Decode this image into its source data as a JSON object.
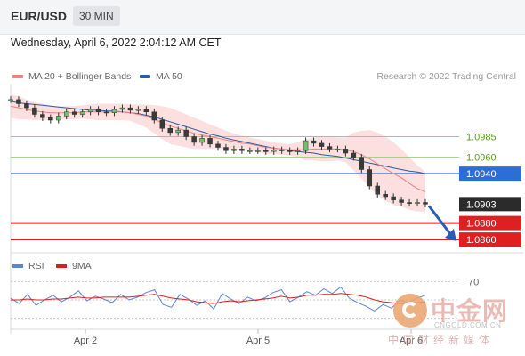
{
  "header": {
    "symbol": "EUR/USD",
    "interval": "30 MIN"
  },
  "timestamp": "Wednesday, April 6, 2022 2:04:12 AM CET",
  "legend": {
    "ma20_label": "MA 20 + Bollinger Bands",
    "ma50_label": "MA 50",
    "credit": "Research © 2022 Trading Central",
    "rsi_label": "RSI",
    "rsi_ma_label": "9MA"
  },
  "colors": {
    "ma20": "#f08080",
    "ma50": "#2d5aa0",
    "band": "#f9c6c6",
    "resistance": "#9acd7c",
    "pivot": "#2b6fd6",
    "support": "#e02020",
    "current": "#2b2b2b",
    "rsi": "#5b86d6",
    "rsi_ma": "#d92020",
    "arrow": "#2b5bb5"
  },
  "chart_data": [
    {
      "type": "line",
      "title": "EUR/USD 30 MIN",
      "ylim": [
        1.0845,
        1.1045
      ],
      "x_ticks": [
        "Apr 2",
        "Apr 5",
        "Apr 6"
      ],
      "levels": [
        {
          "value": 1.0985,
          "label": "1.0985",
          "kind": "resistance"
        },
        {
          "value": 1.096,
          "label": "1.0960",
          "kind": "resistance"
        },
        {
          "value": 1.094,
          "label": "1.0940",
          "kind": "pivot"
        },
        {
          "value": 1.0903,
          "label": "1.0903",
          "kind": "current"
        },
        {
          "value": 1.088,
          "label": "1.0880",
          "kind": "support"
        },
        {
          "value": 1.086,
          "label": "1.0860",
          "kind": "support"
        }
      ],
      "series": [
        {
          "name": "Price",
          "values": [
            1.103,
            1.1025,
            1.102,
            1.1012,
            1.1008,
            1.1005,
            1.101,
            1.1015,
            1.1012,
            1.1015,
            1.1018,
            1.1015,
            1.1014,
            1.1018,
            1.102,
            1.1017,
            1.1018,
            1.1015,
            1.1005,
            1.0995,
            1.099,
            1.0993,
            1.0985,
            1.0978,
            1.0983,
            1.0976,
            1.0972,
            1.0968,
            1.097,
            1.0968,
            1.0968,
            1.0968,
            1.0967,
            1.0969,
            1.0968,
            1.0967,
            1.0968,
            1.098,
            1.0977,
            1.0973,
            1.097,
            1.097,
            1.0965,
            1.096,
            1.0945,
            1.0925,
            1.0915,
            1.0912,
            1.0908,
            1.0905,
            1.0904,
            1.0905,
            1.0903
          ]
        },
        {
          "name": "MA 20",
          "values": [
            1.1022,
            1.102,
            1.1018,
            1.1016,
            1.1015,
            1.1014,
            1.1014,
            1.1014,
            1.1014,
            1.1015,
            1.1015,
            1.1015,
            1.1015,
            1.1015,
            1.1015,
            1.1014,
            1.1012,
            1.101,
            1.1006,
            1.1002,
            1.0998,
            1.0995,
            1.0992,
            1.0989,
            1.0987,
            1.0985,
            1.0983,
            1.0981,
            1.0979,
            1.0977,
            1.0976,
            1.0974,
            1.0972,
            1.0971,
            1.097,
            1.0969,
            1.0969,
            1.0969,
            1.097,
            1.097,
            1.097,
            1.097,
            1.0969,
            1.0967,
            1.0963,
            1.0958,
            1.0952,
            1.0946,
            1.094,
            1.0935,
            1.0928,
            1.0922,
            1.0918
          ]
        },
        {
          "name": "MA 50",
          "values": [
            1.1028,
            1.1026,
            1.1025,
            1.1024,
            1.1023,
            1.1022,
            1.1021,
            1.102,
            1.1019,
            1.1018,
            1.1017,
            1.1017,
            1.1016,
            1.1016,
            1.1015,
            1.1014,
            1.1013,
            1.1011,
            1.1009,
            1.1006,
            1.1003,
            1.1,
            1.0997,
            1.0994,
            1.0991,
            1.0988,
            1.0986,
            1.0983,
            1.0981,
            1.0979,
            1.0977,
            1.0975,
            1.0973,
            1.0971,
            1.097,
            1.0968,
            1.0967,
            1.0966,
            1.0965,
            1.0963,
            1.0962,
            1.0961,
            1.0959,
            1.0957,
            1.0955,
            1.0953,
            1.0951,
            1.0949,
            1.0947,
            1.0945,
            1.0943,
            1.0942,
            1.094
          ]
        },
        {
          "name": "Bollinger Upper",
          "values": [
            1.1036,
            1.1034,
            1.103,
            1.1027,
            1.1025,
            1.1023,
            1.1022,
            1.1022,
            1.1022,
            1.1023,
            1.1024,
            1.1025,
            1.1025,
            1.1025,
            1.1025,
            1.1024,
            1.1024,
            1.1024,
            1.1023,
            1.1022,
            1.102,
            1.1016,
            1.1012,
            1.1008,
            1.1004,
            1.1,
            1.0996,
            1.0992,
            1.0989,
            1.0986,
            1.0984,
            1.0982,
            1.098,
            1.0978,
            1.0977,
            1.0976,
            1.0978,
            1.0982,
            1.0984,
            1.0985,
            1.0985,
            1.0984,
            1.0984,
            1.099,
            1.0992,
            1.0993,
            1.099,
            1.0985,
            1.0978,
            1.097,
            1.096,
            1.095,
            1.0942
          ]
        },
        {
          "name": "Bollinger Lower",
          "values": [
            1.1008,
            1.1006,
            1.1006,
            1.1005,
            1.1005,
            1.1005,
            1.1006,
            1.1006,
            1.1006,
            1.1007,
            1.1006,
            1.1005,
            1.1005,
            1.1005,
            1.1005,
            1.1004,
            1.1,
            1.0996,
            1.0989,
            1.0982,
            1.0976,
            1.0974,
            1.0972,
            1.097,
            1.097,
            1.097,
            1.097,
            1.097,
            1.0969,
            1.0968,
            1.0968,
            1.0966,
            1.0964,
            1.0964,
            1.0963,
            1.0962,
            1.096,
            1.0956,
            1.0956,
            1.0955,
            1.0955,
            1.0956,
            1.0954,
            1.0944,
            1.0934,
            1.0923,
            1.0914,
            1.0907,
            1.0902,
            1.09,
            1.0896,
            1.0894,
            1.0894
          ]
        }
      ],
      "forecast": [
        1.0903,
        1.0858
      ]
    },
    {
      "type": "line",
      "title": "RSI",
      "ylim": [
        20,
        80
      ],
      "y_ticks": [
        70
      ],
      "series": [
        {
          "name": "RSI",
          "values": [
            52,
            46,
            56,
            44,
            50,
            55,
            48,
            53,
            60,
            49,
            54,
            51,
            47,
            56,
            50,
            53,
            58,
            61,
            45,
            42,
            56,
            51,
            44,
            49,
            40,
            57,
            51,
            46,
            53,
            49,
            52,
            58,
            61,
            48,
            53,
            59,
            55,
            62,
            57,
            64,
            52,
            47,
            43,
            38,
            45,
            41,
            50,
            47,
            52,
            55
          ]
        },
        {
          "name": "9MA",
          "values": [
            50,
            50,
            51,
            50,
            50,
            51,
            51,
            52,
            53,
            52,
            52,
            53,
            53,
            53,
            53,
            54,
            55,
            56,
            54,
            52,
            51,
            50,
            48,
            47,
            46,
            48,
            49,
            48,
            49,
            50,
            51,
            52,
            54,
            52,
            53,
            55,
            55,
            56,
            56,
            57,
            56,
            55,
            53,
            50,
            48,
            47,
            46,
            46,
            47,
            48
          ]
        }
      ]
    }
  ]
}
